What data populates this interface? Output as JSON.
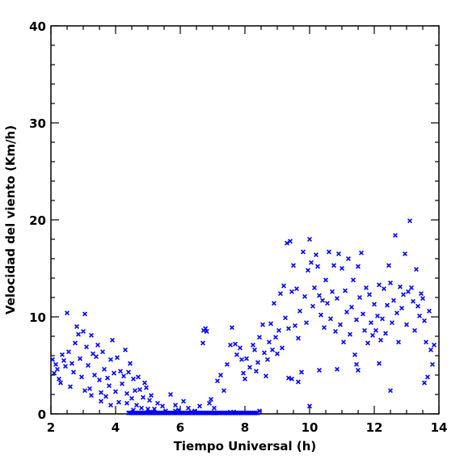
{
  "chart_data": {
    "type": "scatter",
    "xlabel": "Tiempo Universal (h)",
    "ylabel": "Velocidad del viento (Km/h)",
    "xlim": [
      2,
      14
    ],
    "ylim": [
      0,
      40
    ],
    "xticks": [
      2,
      4,
      6,
      8,
      10,
      12,
      14
    ],
    "yticks": [
      0,
      10,
      20,
      30,
      40
    ],
    "grid": false,
    "marker": "x",
    "color": "#0000ff",
    "series": [
      {
        "points": [
          [
            2.05,
            5.6
          ],
          [
            2.1,
            4.2
          ],
          [
            2.15,
            5.1
          ],
          [
            2.2,
            4.6
          ],
          [
            2.25,
            3.6
          ],
          [
            2.3,
            3.2
          ],
          [
            2.35,
            6.1
          ],
          [
            2.4,
            5.5
          ],
          [
            2.45,
            4.9
          ],
          [
            2.5,
            10.4
          ],
          [
            2.55,
            6.4
          ],
          [
            2.6,
            2.8
          ],
          [
            2.65,
            5.2
          ],
          [
            2.7,
            4.3
          ],
          [
            2.75,
            7.3
          ],
          [
            2.8,
            9.0
          ],
          [
            2.85,
            8.2
          ],
          [
            2.9,
            5.7
          ],
          [
            2.95,
            3.8
          ],
          [
            3.0,
            8.5
          ],
          [
            3.05,
            10.3
          ],
          [
            3.1,
            6.9
          ],
          [
            3.15,
            5.0
          ],
          [
            3.2,
            2.6
          ],
          [
            3.25,
            8.1
          ],
          [
            3.3,
            6.2
          ],
          [
            3.35,
            4.0
          ],
          [
            3.4,
            5.9
          ],
          [
            3.45,
            7.1
          ],
          [
            3.5,
            3.5
          ],
          [
            3.55,
            2.2
          ],
          [
            3.6,
            6.4
          ],
          [
            3.65,
            4.6
          ],
          [
            3.7,
            1.8
          ],
          [
            3.75,
            3.7
          ],
          [
            3.8,
            2.9
          ],
          [
            3.85,
            5.6
          ],
          [
            3.9,
            7.6
          ],
          [
            3.95,
            4.2
          ],
          [
            4.0,
            2.3
          ],
          [
            4.05,
            5.8
          ],
          [
            4.1,
            1.2
          ],
          [
            4.15,
            4.4
          ],
          [
            4.2,
            3.1
          ],
          [
            4.25,
            3.9
          ],
          [
            4.3,
            6.6
          ],
          [
            4.35,
            2.1
          ],
          [
            4.4,
            4.3
          ],
          [
            4.45,
            5.2
          ],
          [
            4.5,
            1.6
          ],
          [
            4.55,
            3.6
          ],
          [
            4.6,
            2.4
          ],
          [
            4.65,
            0.9
          ],
          [
            4.7,
            3.8
          ],
          [
            4.75,
            2.5
          ],
          [
            4.8,
            0.6
          ],
          [
            4.85,
            1.7
          ],
          [
            4.9,
            3.2
          ],
          [
            4.95,
            2.7
          ],
          [
            5.0,
            0.5
          ],
          [
            5.05,
            1.4
          ],
          [
            5.1,
            1.9
          ],
          [
            5.2,
            0.5
          ],
          [
            5.3,
            1.1
          ],
          [
            5.45,
            0.8
          ],
          [
            5.55,
            0.3
          ],
          [
            5.7,
            2.0
          ],
          [
            5.85,
            0.9
          ],
          [
            5.95,
            0.4
          ],
          [
            6.1,
            1.3
          ],
          [
            6.25,
            0.6
          ],
          [
            6.45,
            0.3
          ],
          [
            6.6,
            0.8
          ],
          [
            6.7,
            7.3
          ],
          [
            6.72,
            8.6
          ],
          [
            6.78,
            8.8
          ],
          [
            6.82,
            8.5
          ],
          [
            6.9,
            1.1
          ],
          [
            6.95,
            1.5
          ],
          [
            7.05,
            0.6
          ],
          [
            7.15,
            3.4
          ],
          [
            7.25,
            4.0
          ],
          [
            7.35,
            2.4
          ],
          [
            7.45,
            5.1
          ],
          [
            7.55,
            7.1
          ],
          [
            7.6,
            8.9
          ],
          [
            7.7,
            7.2
          ],
          [
            7.75,
            6.1
          ],
          [
            7.85,
            6.8
          ],
          [
            7.9,
            5.6
          ],
          [
            7.95,
            4.2
          ],
          [
            8.0,
            3.6
          ],
          [
            8.05,
            5.7
          ],
          [
            8.15,
            4.8
          ],
          [
            8.25,
            7.1
          ],
          [
            8.3,
            6.6
          ],
          [
            8.35,
            4.4
          ],
          [
            8.4,
            5.3
          ],
          [
            8.45,
            7.9
          ],
          [
            8.55,
            9.2
          ],
          [
            8.6,
            6.3
          ],
          [
            8.65,
            3.9
          ],
          [
            8.7,
            5.6
          ],
          [
            8.75,
            7.4
          ],
          [
            8.8,
            9.3
          ],
          [
            8.85,
            6.6
          ],
          [
            8.9,
            11.4
          ],
          [
            8.95,
            7.9
          ],
          [
            9.0,
            6.2
          ],
          [
            9.05,
            8.6
          ],
          [
            9.1,
            12.4
          ],
          [
            9.15,
            6.8
          ],
          [
            9.2,
            13.2
          ],
          [
            9.25,
            9.9
          ],
          [
            9.3,
            17.6
          ],
          [
            9.35,
            8.8
          ],
          [
            9.4,
            17.8
          ],
          [
            9.45,
            12.6
          ],
          [
            9.5,
            15.3
          ],
          [
            9.55,
            9.1
          ],
          [
            9.6,
            12.9
          ],
          [
            9.65,
            7.8
          ],
          [
            9.7,
            10.6
          ],
          [
            9.75,
            4.3
          ],
          [
            9.8,
            16.7
          ],
          [
            9.85,
            12.1
          ],
          [
            9.9,
            9.4
          ],
          [
            9.95,
            14.8
          ],
          [
            10.0,
            18.0
          ],
          [
            10.05,
            15.6
          ],
          [
            10.1,
            11.1
          ],
          [
            10.15,
            13.0
          ],
          [
            10.2,
            16.4
          ],
          [
            10.25,
            15.2
          ],
          [
            10.3,
            12.2
          ],
          [
            10.35,
            10.2
          ],
          [
            10.4,
            11.7
          ],
          [
            10.45,
            8.9
          ],
          [
            10.5,
            13.8
          ],
          [
            10.55,
            11.4
          ],
          [
            10.6,
            16.7
          ],
          [
            10.65,
            9.8
          ],
          [
            10.7,
            12.6
          ],
          [
            10.75,
            15.3
          ],
          [
            10.8,
            8.5
          ],
          [
            10.85,
            11.9
          ],
          [
            10.9,
            16.5
          ],
          [
            10.95,
            9.2
          ],
          [
            11.0,
            15.0
          ],
          [
            11.05,
            7.4
          ],
          [
            11.1,
            12.7
          ],
          [
            11.15,
            10.5
          ],
          [
            11.2,
            16.0
          ],
          [
            11.25,
            8.2
          ],
          [
            11.3,
            11.0
          ],
          [
            11.35,
            13.8
          ],
          [
            11.4,
            6.1
          ],
          [
            11.45,
            9.7
          ],
          [
            11.5,
            15.2
          ],
          [
            11.55,
            12.0
          ],
          [
            11.6,
            16.6
          ],
          [
            11.65,
            10.3
          ],
          [
            11.7,
            8.6
          ],
          [
            11.75,
            13.0
          ],
          [
            11.8,
            7.3
          ],
          [
            11.85,
            12.3
          ],
          [
            11.9,
            9.4
          ],
          [
            11.95,
            8.1
          ],
          [
            12.0,
            11.3
          ],
          [
            12.05,
            8.6
          ],
          [
            12.1,
            10.1
          ],
          [
            12.15,
            13.3
          ],
          [
            12.2,
            7.6
          ],
          [
            12.25,
            9.8
          ],
          [
            12.3,
            12.9
          ],
          [
            12.35,
            8.3
          ],
          [
            12.4,
            11.2
          ],
          [
            12.45,
            15.3
          ],
          [
            12.5,
            13.5
          ],
          [
            12.55,
            9.4
          ],
          [
            12.6,
            11.7
          ],
          [
            12.65,
            18.4
          ],
          [
            12.7,
            10.4
          ],
          [
            12.75,
            7.4
          ],
          [
            12.8,
            13.1
          ],
          [
            12.85,
            10.9
          ],
          [
            12.9,
            12.3
          ],
          [
            12.95,
            16.5
          ],
          [
            13.0,
            9.2
          ],
          [
            13.05,
            12.6
          ],
          [
            13.1,
            19.9
          ],
          [
            13.15,
            13.0
          ],
          [
            13.2,
            11.6
          ],
          [
            13.25,
            8.6
          ],
          [
            13.3,
            14.9
          ],
          [
            13.35,
            11.1
          ],
          [
            13.4,
            10.1
          ],
          [
            13.45,
            12.4
          ],
          [
            13.5,
            11.9
          ],
          [
            13.55,
            9.6
          ],
          [
            13.6,
            7.4
          ],
          [
            13.65,
            3.8
          ],
          [
            13.7,
            10.6
          ],
          [
            13.75,
            6.6
          ],
          [
            13.8,
            5.1
          ],
          [
            13.85,
            7.1
          ],
          [
            3.05,
            2.4
          ],
          [
            3.25,
            1.9
          ],
          [
            3.55,
            1.3
          ],
          [
            3.85,
            0.9
          ],
          [
            4.35,
            1.1
          ],
          [
            4.55,
            0.4
          ],
          [
            5.15,
            0.2
          ],
          [
            5.85,
            0.3
          ],
          [
            6.35,
            0.2
          ],
          [
            7.05,
            0.1
          ],
          [
            7.65,
            0.2
          ],
          [
            8.45,
            0.3
          ],
          [
            9.35,
            3.7
          ],
          [
            9.45,
            3.6
          ],
          [
            9.65,
            3.3
          ],
          [
            10.0,
            0.8
          ],
          [
            10.3,
            4.5
          ],
          [
            10.85,
            4.6
          ],
          [
            11.5,
            4.5
          ],
          [
            12.5,
            2.4
          ],
          [
            12.15,
            5.2
          ],
          [
            13.55,
            3.2
          ],
          [
            11.45,
            5.1
          ]
        ]
      }
    ],
    "baseline_from": 4.4,
    "baseline_to": 8.4
  }
}
